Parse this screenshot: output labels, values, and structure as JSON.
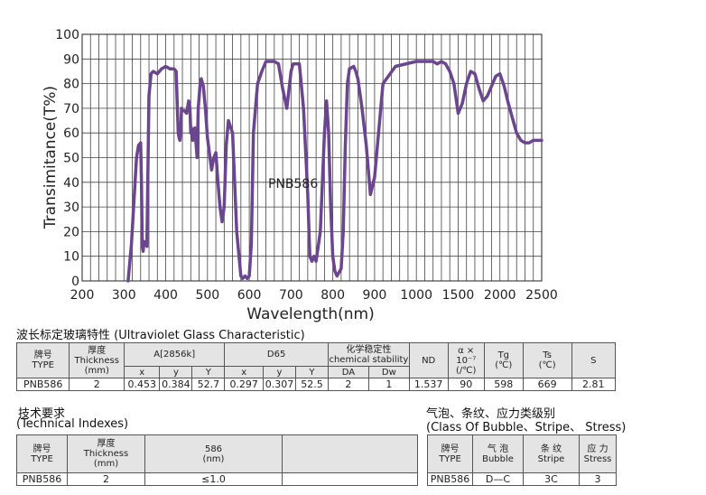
{
  "chart_data": {
    "type": "line",
    "ylabel": "Transimitance(T%)",
    "xlabel": "Wavelength(nm)",
    "annotation": "PNB586",
    "x_ticks": [
      200,
      300,
      400,
      500,
      600,
      700,
      800,
      900,
      1000,
      1500,
      2000,
      2500
    ],
    "y_ticks": [
      0,
      10,
      20,
      30,
      40,
      50,
      60,
      70,
      80,
      90,
      100
    ],
    "ylim": [
      0,
      100
    ],
    "grid": true,
    "line_color": "#6b4590",
    "series": [
      {
        "x": [
          310,
          318,
          325,
          330,
          335,
          340,
          342,
          344,
          346,
          348,
          350,
          355,
          360,
          365,
          370,
          380,
          390,
          400,
          410,
          420,
          425,
          430,
          432,
          434,
          436,
          438,
          440,
          445,
          450,
          455,
          458,
          460,
          462,
          465,
          470,
          475,
          478,
          482,
          485,
          490,
          495,
          500,
          510,
          515,
          520,
          525,
          530,
          535,
          540,
          545,
          550,
          560,
          570,
          580,
          584,
          590,
          595,
          600,
          605,
          610,
          620,
          630,
          640,
          650,
          660,
          670,
          680,
          690,
          700,
          705,
          710,
          720,
          730,
          740,
          745,
          750,
          755,
          760,
          770,
          775,
          780,
          785,
          790,
          795,
          800,
          805,
          810,
          820,
          825,
          830,
          835,
          840,
          850,
          855,
          860,
          870,
          880,
          890,
          900,
          920,
          950,
          1000,
          1050,
          1100,
          1150,
          1200,
          1250,
          1300,
          1350,
          1400,
          1450,
          1500,
          1550,
          1600,
          1650,
          1700,
          1750,
          1800,
          1850,
          1900,
          1950,
          2000,
          2050,
          2100,
          2150,
          2200,
          2250,
          2300,
          2350,
          2400,
          2450,
          2500
        ],
        "values": [
          0,
          15,
          35,
          50,
          55,
          56,
          40,
          14,
          12,
          16,
          15,
          14,
          75,
          84,
          85,
          84,
          86,
          87,
          86,
          86,
          85,
          60,
          58,
          57,
          60,
          70,
          69,
          69,
          68,
          73,
          70,
          60,
          62,
          57,
          62,
          50,
          70,
          79,
          82,
          79,
          70,
          58,
          45,
          50,
          52,
          40,
          30,
          24,
          30,
          55,
          65,
          60,
          20,
          2,
          1,
          2,
          1,
          2,
          15,
          60,
          80,
          85,
          89,
          89,
          89,
          88,
          78,
          70,
          85,
          88,
          88,
          88,
          70,
          35,
          10,
          8,
          10,
          8,
          20,
          40,
          60,
          73,
          60,
          30,
          10,
          4,
          2,
          5,
          20,
          55,
          80,
          86,
          87,
          85,
          82,
          70,
          55,
          35,
          42,
          80,
          87,
          89,
          89,
          89,
          89,
          89,
          88,
          89,
          88,
          85,
          80,
          68,
          72,
          80,
          85,
          84,
          78,
          73,
          75,
          79,
          83,
          84,
          79,
          72,
          66,
          60,
          57,
          56,
          56,
          57,
          57,
          57
        ]
      }
    ]
  },
  "uv_section": {
    "title": "波长标定玻璃特性 (Ultraviolet Glass Characteristic)",
    "h_type": "牌号\nTYPE",
    "h_thickness": "厚度\nThickness\n(mm)",
    "h_a": "A[2856k]",
    "h_d65": "D65",
    "h_chem": "化学稳定性\nchemical stability",
    "h_nd": "ND",
    "h_alpha": "α × 10⁻⁷\n(/℃)",
    "h_tg": "Tg\n(℃)",
    "h_ts": "Ts\n(℃)",
    "h_s": "S",
    "sub_x1": "x",
    "sub_y1": "y",
    "sub_Y1": "Y",
    "sub_x2": "x",
    "sub_y2": "y",
    "sub_Y2": "Y",
    "sub_da": "DA",
    "sub_dw": "Dw",
    "row": {
      "type": "PNB586",
      "thickness": "2",
      "ax": "0.453",
      "ay": "0.384",
      "aY": "52.7",
      "dx": "0.297",
      "dy": "0.307",
      "dY": "52.5",
      "da": "2",
      "dw": "1",
      "nd": "1.537",
      "alpha": "90",
      "tg": "598",
      "ts": "669",
      "s": "2.81"
    }
  },
  "tech_section": {
    "title_cn": "技术要求",
    "title_en": "(Technical Indexes)",
    "h_type": "牌号\nTYPE",
    "h_thickness": "厚度\nThickness\n(mm)",
    "h_586": "586\n(nm)",
    "h_empty": "",
    "row": {
      "type": "PNB586",
      "thickness": "2",
      "value": "≤1.0",
      "empty": ""
    }
  },
  "bubble_section": {
    "title_cn": "气泡、条纹、应力类级别",
    "title_en": "(Class Of Bubble、Stripe、 Stress)",
    "h_type": "牌号\nTYPE",
    "h_bubble": "气 泡\nBubble",
    "h_stripe": "条 纹\nStripe",
    "h_stress": "应 力\nStress",
    "row": {
      "type": "PNB586",
      "bubble": "D—C",
      "stripe": "3C",
      "stress": "3"
    }
  }
}
